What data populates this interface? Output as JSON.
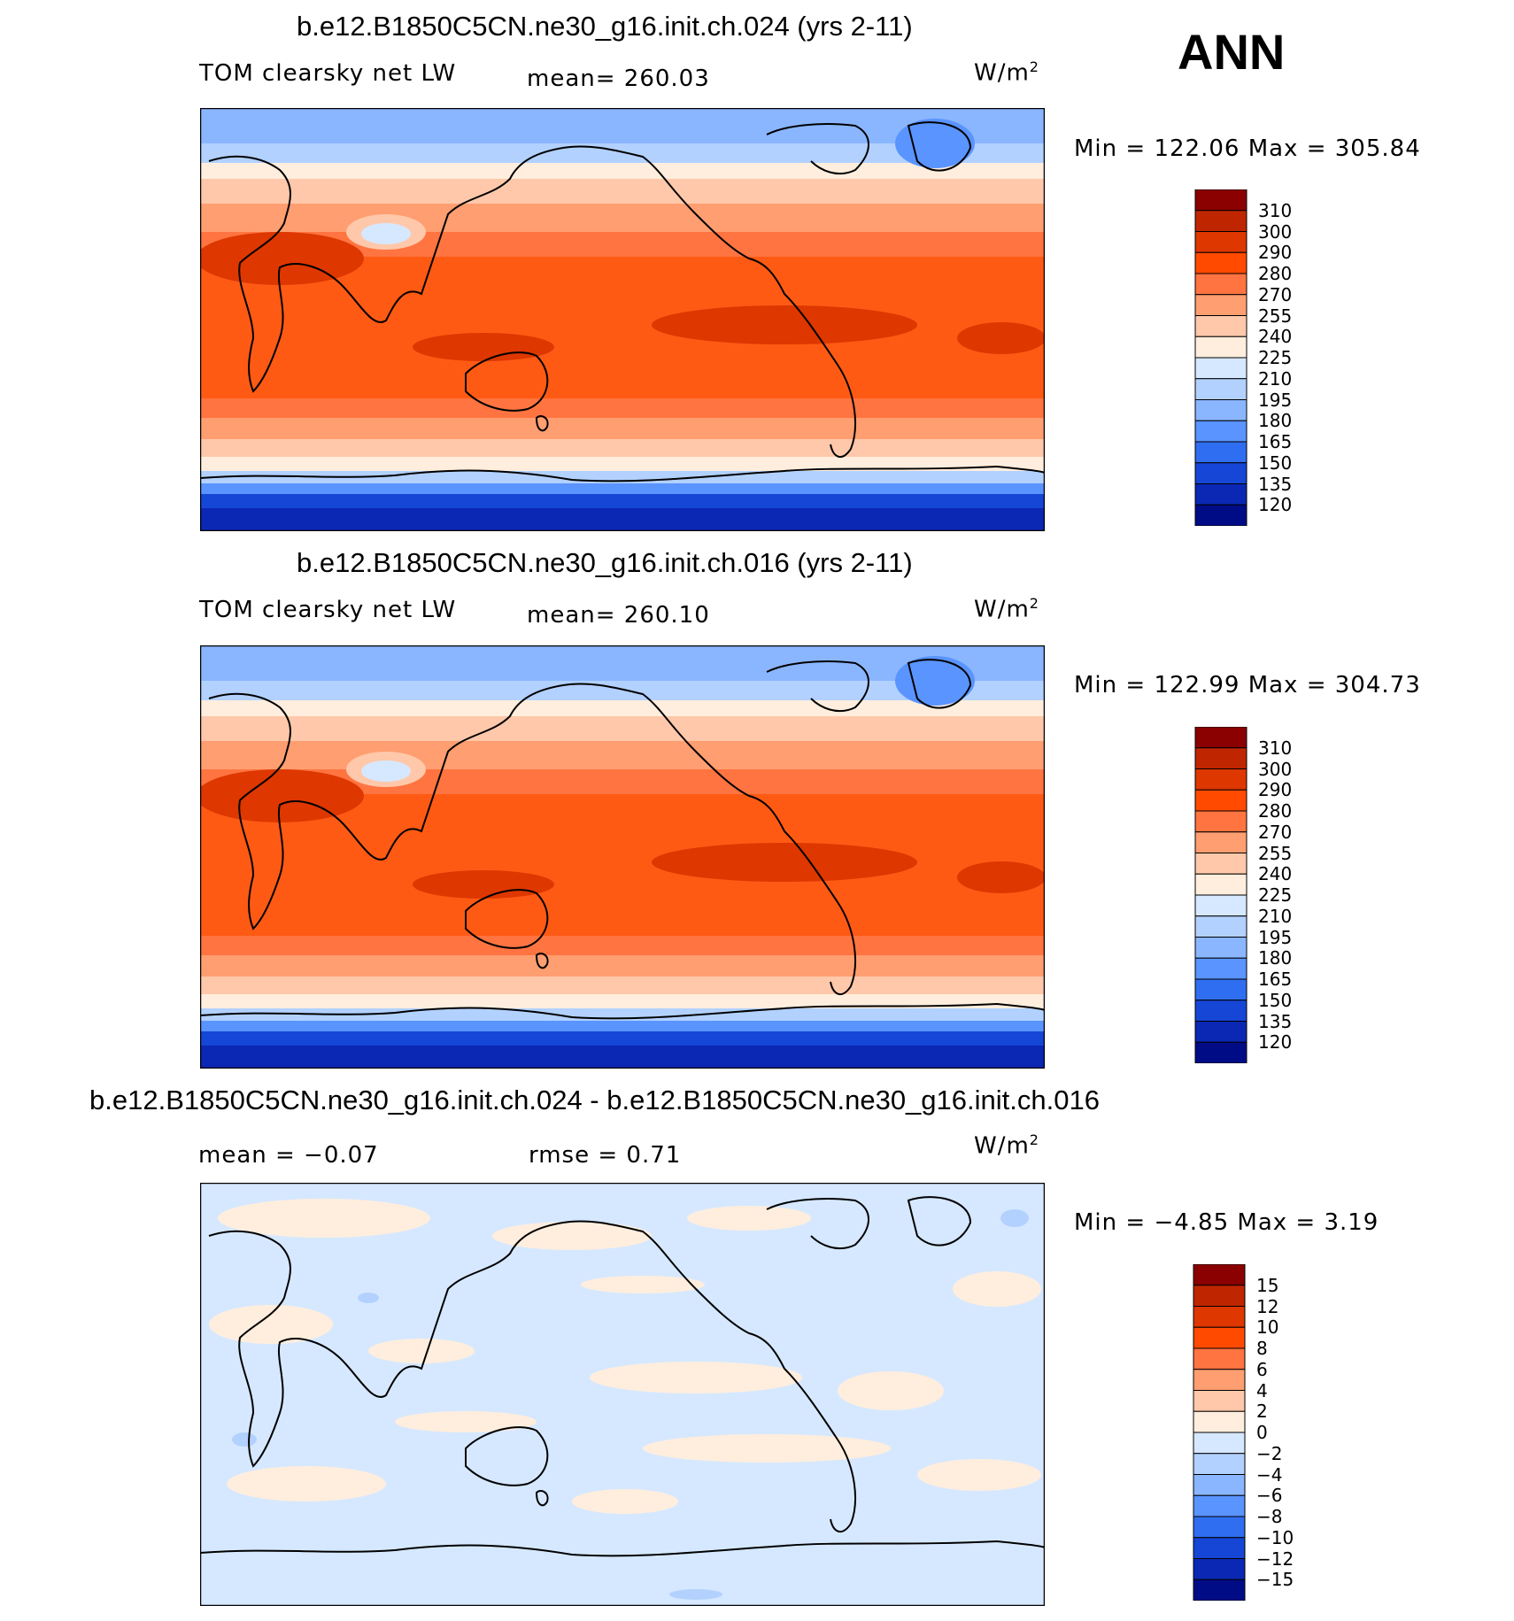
{
  "season": "ANN",
  "panels": [
    {
      "title": "b.e12.B1850C5CN.ne30_g16.init.ch.024 (yrs 2-11)",
      "left_label": "TOM clearsky net LW",
      "center_label": "mean=  260.03",
      "units": "W/m",
      "units_sup": "2",
      "minmax": "Min  =  122.06  Max  =  305.84",
      "kind": "field"
    },
    {
      "title": "b.e12.B1850C5CN.ne30_g16.init.ch.016 (yrs 2-11)",
      "left_label": "TOM clearsky net LW",
      "center_label": "mean=  260.10",
      "units": "W/m",
      "units_sup": "2",
      "minmax": "Min  =  122.99  Max  =  304.73",
      "kind": "field"
    },
    {
      "title": "b.e12.B1850C5CN.ne30_g16.init.ch.024 - b.e12.B1850C5CN.ne30_g16.init.ch.016",
      "left_label": "mean  =    −0.07",
      "center_label": "rmse  =     0.71",
      "units": "W/m",
      "units_sup": "2",
      "minmax": "Min  =    −4.85  Max  =      3.19",
      "kind": "diff"
    }
  ],
  "colorbars": {
    "field": {
      "labels": [
        "310",
        "300",
        "290",
        "280",
        "270",
        "255",
        "240",
        "225",
        "210",
        "195",
        "180",
        "165",
        "150",
        "135",
        "120"
      ],
      "colors": [
        "#8b0000",
        "#bf2600",
        "#de3700",
        "#ff4a00",
        "#ff7440",
        "#ff9e70",
        "#ffc8aa",
        "#ffeedd",
        "#d6e8ff",
        "#b2d1ff",
        "#8ab6ff",
        "#5a94ff",
        "#2f6ef0",
        "#1646d6",
        "#0a28b4",
        "#000c86"
      ]
    },
    "diff": {
      "labels": [
        "15",
        "12",
        "10",
        "8",
        "6",
        "4",
        "2",
        "0",
        "−2",
        "−4",
        "−6",
        "−8",
        "−10",
        "−12",
        "−15"
      ],
      "colors": [
        "#8b0000",
        "#bf2600",
        "#de3700",
        "#ff4a00",
        "#ff7440",
        "#ff9e70",
        "#ffc8aa",
        "#ffeedd",
        "#d6e8ff",
        "#b2d1ff",
        "#8ab6ff",
        "#5a94ff",
        "#2f6ef0",
        "#1646d6",
        "#0a28b4",
        "#000c86"
      ]
    }
  }
}
